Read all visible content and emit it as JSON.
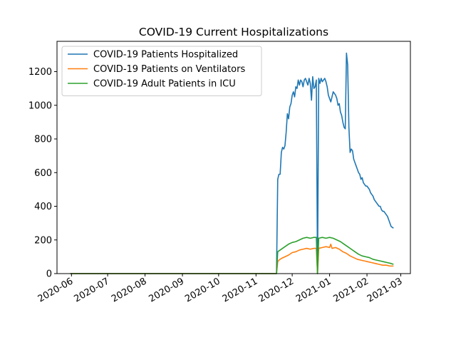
{
  "chart_data": {
    "type": "line",
    "title": "COVID-19 Current Hospitalizations",
    "xlabel": "",
    "ylabel": "",
    "x_ticks": [
      "2020-06",
      "2020-07",
      "2020-08",
      "2020-09",
      "2020-10",
      "2020-11",
      "2020-12",
      "2021-01",
      "2021-02",
      "2021-03"
    ],
    "y_ticks": [
      0,
      200,
      400,
      600,
      800,
      1000,
      1200
    ],
    "xlim": [
      "2020-05-20",
      "2021-03-09"
    ],
    "ylim": [
      0,
      1380
    ],
    "grid": false,
    "legend_position": "top-left",
    "series": [
      {
        "name": "COVID-19 Patients Hospitalized",
        "color": "#1f77b4",
        "points": [
          [
            "2020-05-31",
            0
          ],
          [
            "2020-07-01",
            0
          ],
          [
            "2020-08-01",
            0
          ],
          [
            "2020-09-01",
            0
          ],
          [
            "2020-10-01",
            0
          ],
          [
            "2020-11-01",
            0
          ],
          [
            "2020-11-18",
            0
          ],
          [
            "2020-11-19",
            560
          ],
          [
            "2020-11-20",
            590
          ],
          [
            "2020-11-21",
            590
          ],
          [
            "2020-11-22",
            720
          ],
          [
            "2020-11-23",
            750
          ],
          [
            "2020-11-24",
            740
          ],
          [
            "2020-11-25",
            760
          ],
          [
            "2020-11-26",
            840
          ],
          [
            "2020-11-27",
            950
          ],
          [
            "2020-11-28",
            920
          ],
          [
            "2020-11-29",
            990
          ],
          [
            "2020-11-30",
            1010
          ],
          [
            "2020-12-01",
            1060
          ],
          [
            "2020-12-02",
            1080
          ],
          [
            "2020-12-03",
            1050
          ],
          [
            "2020-12-04",
            1110
          ],
          [
            "2020-12-05",
            1100
          ],
          [
            "2020-12-06",
            1150
          ],
          [
            "2020-12-07",
            1120
          ],
          [
            "2020-12-08",
            1150
          ],
          [
            "2020-12-09",
            1140
          ],
          [
            "2020-12-10",
            1110
          ],
          [
            "2020-12-11",
            1150
          ],
          [
            "2020-12-12",
            1160
          ],
          [
            "2020-12-13",
            1140
          ],
          [
            "2020-12-14",
            1120
          ],
          [
            "2020-12-15",
            1160
          ],
          [
            "2020-12-16",
            1130
          ],
          [
            "2020-12-17",
            1030
          ],
          [
            "2020-12-18",
            1170
          ],
          [
            "2020-12-19",
            1100
          ],
          [
            "2020-12-20",
            1110
          ],
          [
            "2020-12-21",
            1150
          ],
          [
            "2020-12-22",
            0
          ],
          [
            "2020-12-23",
            1160
          ],
          [
            "2020-12-24",
            1130
          ],
          [
            "2020-12-25",
            1160
          ],
          [
            "2020-12-26",
            1140
          ],
          [
            "2020-12-27",
            1150
          ],
          [
            "2020-12-28",
            1160
          ],
          [
            "2020-12-29",
            1140
          ],
          [
            "2020-12-30",
            1110
          ],
          [
            "2020-12-31",
            1060
          ],
          [
            "2021-01-01",
            1040
          ],
          [
            "2021-01-02",
            1020
          ],
          [
            "2021-01-03",
            1050
          ],
          [
            "2021-01-04",
            1080
          ],
          [
            "2021-01-05",
            1070
          ],
          [
            "2021-01-06",
            1060
          ],
          [
            "2021-01-07",
            1040
          ],
          [
            "2021-01-08",
            1000
          ],
          [
            "2021-01-09",
            1010
          ],
          [
            "2021-01-10",
            960
          ],
          [
            "2021-01-11",
            940
          ],
          [
            "2021-01-12",
            900
          ],
          [
            "2021-01-13",
            870
          ],
          [
            "2021-01-14",
            860
          ],
          [
            "2021-01-15",
            1310
          ],
          [
            "2021-01-16",
            1240
          ],
          [
            "2021-01-17",
            870
          ],
          [
            "2021-01-18",
            720
          ],
          [
            "2021-01-19",
            740
          ],
          [
            "2021-01-20",
            730
          ],
          [
            "2021-01-21",
            680
          ],
          [
            "2021-01-22",
            660
          ],
          [
            "2021-01-23",
            640
          ],
          [
            "2021-01-24",
            620
          ],
          [
            "2021-01-25",
            600
          ],
          [
            "2021-01-26",
            590
          ],
          [
            "2021-01-27",
            560
          ],
          [
            "2021-01-28",
            570
          ],
          [
            "2021-01-29",
            540
          ],
          [
            "2021-01-30",
            530
          ],
          [
            "2021-01-31",
            520
          ],
          [
            "2021-02-01",
            520
          ],
          [
            "2021-02-02",
            510
          ],
          [
            "2021-02-03",
            500
          ],
          [
            "2021-02-04",
            480
          ],
          [
            "2021-02-05",
            470
          ],
          [
            "2021-02-06",
            460
          ],
          [
            "2021-02-07",
            440
          ],
          [
            "2021-02-08",
            430
          ],
          [
            "2021-02-09",
            420
          ],
          [
            "2021-02-10",
            410
          ],
          [
            "2021-02-11",
            400
          ],
          [
            "2021-02-12",
            400
          ],
          [
            "2021-02-13",
            380
          ],
          [
            "2021-02-14",
            370
          ],
          [
            "2021-02-15",
            370
          ],
          [
            "2021-02-16",
            360
          ],
          [
            "2021-02-17",
            350
          ],
          [
            "2021-02-18",
            340
          ],
          [
            "2021-02-19",
            320
          ],
          [
            "2021-02-20",
            300
          ],
          [
            "2021-02-21",
            280
          ],
          [
            "2021-02-22",
            275
          ],
          [
            "2021-02-23",
            270
          ]
        ]
      },
      {
        "name": "COVID-19 Patients on Ventilators",
        "color": "#ff7f0e",
        "points": [
          [
            "2020-05-31",
            0
          ],
          [
            "2020-07-01",
            0
          ],
          [
            "2020-08-01",
            0
          ],
          [
            "2020-09-01",
            0
          ],
          [
            "2020-10-01",
            0
          ],
          [
            "2020-11-01",
            0
          ],
          [
            "2020-11-18",
            0
          ],
          [
            "2020-11-19",
            70
          ],
          [
            "2020-11-20",
            80
          ],
          [
            "2020-11-22",
            90
          ],
          [
            "2020-11-25",
            100
          ],
          [
            "2020-11-28",
            110
          ],
          [
            "2020-12-01",
            125
          ],
          [
            "2020-12-04",
            130
          ],
          [
            "2020-12-07",
            140
          ],
          [
            "2020-12-10",
            145
          ],
          [
            "2020-12-13",
            150
          ],
          [
            "2020-12-16",
            145
          ],
          [
            "2020-12-19",
            150
          ],
          [
            "2020-12-21",
            150
          ],
          [
            "2020-12-22",
            0
          ],
          [
            "2020-12-23",
            150
          ],
          [
            "2020-12-26",
            155
          ],
          [
            "2020-12-29",
            160
          ],
          [
            "2021-01-01",
            155
          ],
          [
            "2021-01-02",
            175
          ],
          [
            "2021-01-03",
            150
          ],
          [
            "2021-01-06",
            155
          ],
          [
            "2021-01-09",
            145
          ],
          [
            "2021-01-12",
            130
          ],
          [
            "2021-01-15",
            120
          ],
          [
            "2021-01-18",
            105
          ],
          [
            "2021-01-21",
            95
          ],
          [
            "2021-01-24",
            85
          ],
          [
            "2021-01-27",
            80
          ],
          [
            "2021-01-30",
            75
          ],
          [
            "2021-02-02",
            70
          ],
          [
            "2021-02-05",
            65
          ],
          [
            "2021-02-08",
            60
          ],
          [
            "2021-02-11",
            55
          ],
          [
            "2021-02-14",
            50
          ],
          [
            "2021-02-17",
            50
          ],
          [
            "2021-02-20",
            45
          ],
          [
            "2021-02-23",
            45
          ]
        ]
      },
      {
        "name": "COVID-19 Adult Patients in ICU",
        "color": "#2ca02c",
        "points": [
          [
            "2020-05-31",
            0
          ],
          [
            "2020-07-01",
            0
          ],
          [
            "2020-08-01",
            0
          ],
          [
            "2020-09-01",
            0
          ],
          [
            "2020-10-01",
            0
          ],
          [
            "2020-11-01",
            0
          ],
          [
            "2020-11-18",
            0
          ],
          [
            "2020-11-19",
            130
          ],
          [
            "2020-11-21",
            140
          ],
          [
            "2020-11-23",
            150
          ],
          [
            "2020-11-25",
            160
          ],
          [
            "2020-11-28",
            175
          ],
          [
            "2020-12-01",
            185
          ],
          [
            "2020-12-04",
            190
          ],
          [
            "2020-12-07",
            200
          ],
          [
            "2020-12-10",
            210
          ],
          [
            "2020-12-13",
            215
          ],
          [
            "2020-12-16",
            210
          ],
          [
            "2020-12-19",
            215
          ],
          [
            "2020-12-21",
            215
          ],
          [
            "2020-12-22",
            0
          ],
          [
            "2020-12-23",
            210
          ],
          [
            "2020-12-26",
            215
          ],
          [
            "2020-12-29",
            210
          ],
          [
            "2021-01-01",
            215
          ],
          [
            "2021-01-04",
            210
          ],
          [
            "2021-01-07",
            200
          ],
          [
            "2021-01-10",
            190
          ],
          [
            "2021-01-13",
            175
          ],
          [
            "2021-01-16",
            160
          ],
          [
            "2021-01-19",
            145
          ],
          [
            "2021-01-22",
            130
          ],
          [
            "2021-01-25",
            115
          ],
          [
            "2021-01-28",
            105
          ],
          [
            "2021-01-31",
            100
          ],
          [
            "2021-02-03",
            95
          ],
          [
            "2021-02-06",
            85
          ],
          [
            "2021-02-09",
            80
          ],
          [
            "2021-02-12",
            75
          ],
          [
            "2021-02-15",
            70
          ],
          [
            "2021-02-18",
            65
          ],
          [
            "2021-02-21",
            60
          ],
          [
            "2021-02-23",
            55
          ]
        ]
      }
    ]
  }
}
